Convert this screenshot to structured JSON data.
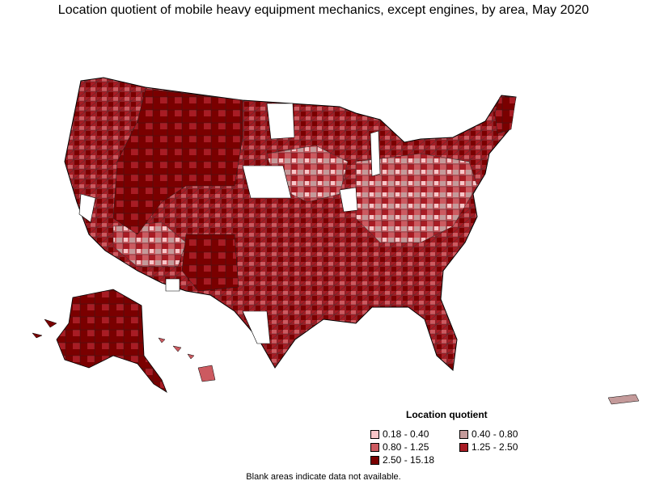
{
  "title": "Location quotient of mobile heavy equipment mechanics, except engines, by area, May 2020",
  "legend": {
    "title": "Location quotient",
    "items": [
      {
        "label": "0.18 - 0.40",
        "color": "#f7c6c8"
      },
      {
        "label": "0.40 - 0.80",
        "color": "#c49a9a"
      },
      {
        "label": "0.80 - 1.25",
        "color": "#cc5a60"
      },
      {
        "label": "1.25 - 2.50",
        "color": "#a81c24"
      },
      {
        "label": "2.50 - 15.18",
        "color": "#7a0000"
      }
    ],
    "no_data_color": "#ffffff"
  },
  "footnote": "Blank areas indicate data not available."
}
